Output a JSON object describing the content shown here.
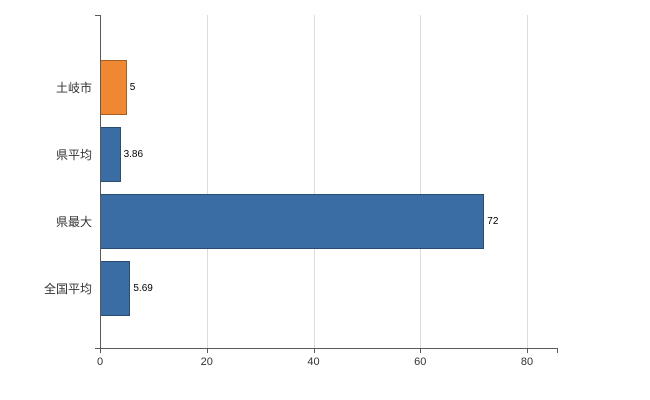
{
  "chart_data": {
    "type": "bar",
    "orientation": "horizontal",
    "title": "",
    "xlabel": "",
    "ylabel": "",
    "categories": [
      "土岐市",
      "県平均",
      "県最大",
      "全国平均"
    ],
    "values": [
      5,
      3.86,
      72,
      5.69
    ],
    "value_labels": [
      "5",
      "3.86",
      "72",
      "5.69"
    ],
    "bar_colors": [
      "#EF8733",
      "#3B6DA5",
      "#3B6DA5",
      "#3B6DA5"
    ],
    "x_ticks": [
      "0",
      "20",
      "40",
      "60",
      "80"
    ],
    "x_tick_values": [
      0,
      20,
      40,
      60,
      80
    ],
    "xlim": [
      0,
      85.6
    ],
    "grid": true,
    "legend": "none",
    "colors": {
      "highlight_bar": "#EF8733",
      "default_bar": "#3B6DA5",
      "grid_line": "#dcdcdc",
      "axis_line": "#595959",
      "text": "#333333"
    }
  }
}
